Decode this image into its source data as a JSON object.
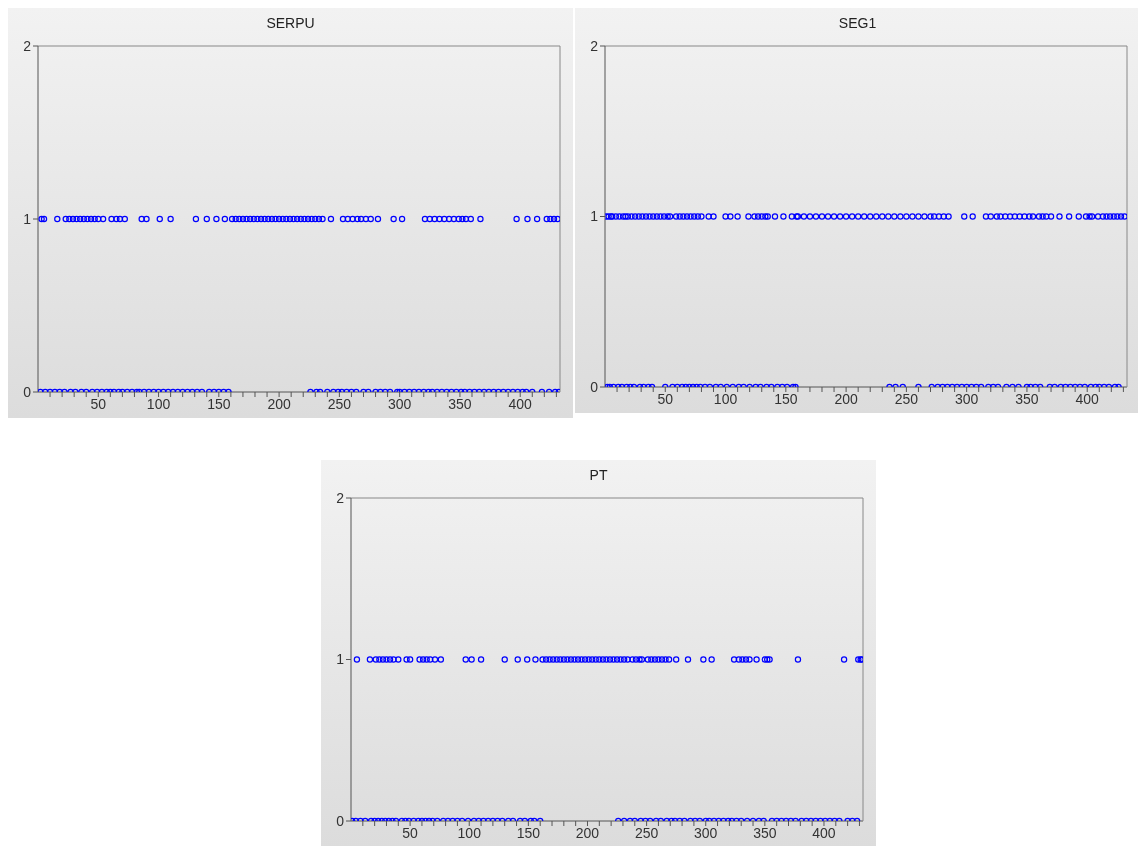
{
  "chart_data": [
    {
      "type": "scatter",
      "title": "SERPU",
      "color": "#0000ff",
      "marker": "circle",
      "xlim": [
        0,
        433
      ],
      "ylim": [
        0,
        2
      ],
      "yticks": [
        0,
        1,
        2
      ],
      "xticks": [
        {
          "value": 10,
          "label": null
        },
        {
          "value": 20,
          "label": null
        },
        {
          "value": 30,
          "label": null
        },
        {
          "value": 40,
          "label": null
        },
        50,
        {
          "value": 60,
          "label": null
        },
        {
          "value": 70,
          "label": null
        },
        {
          "value": 80,
          "label": null
        },
        {
          "value": 90,
          "label": null
        },
        100,
        {
          "value": 110,
          "label": null
        },
        {
          "value": 120,
          "label": null
        },
        {
          "value": 130,
          "label": null
        },
        {
          "value": 140,
          "label": null
        },
        150,
        {
          "value": 160,
          "label": null
        },
        {
          "value": 170,
          "label": null
        },
        {
          "value": 180,
          "label": null
        },
        {
          "value": 190,
          "label": null
        },
        200,
        {
          "value": 210,
          "label": null
        },
        {
          "value": 220,
          "label": null
        },
        {
          "value": 230,
          "label": null
        },
        {
          "value": 240,
          "label": null
        },
        250,
        {
          "value": 260,
          "label": null
        },
        {
          "value": 270,
          "label": null
        },
        {
          "value": 280,
          "label": null
        },
        {
          "value": 290,
          "label": null
        },
        300,
        {
          "value": 310,
          "label": null
        },
        {
          "value": 320,
          "label": null
        },
        {
          "value": 330,
          "label": null
        },
        {
          "value": 340,
          "label": null
        },
        350,
        {
          "value": 360,
          "label": null
        },
        {
          "value": 370,
          "label": null
        },
        {
          "value": 380,
          "label": null
        },
        {
          "value": 390,
          "label": null
        },
        400,
        {
          "value": 410,
          "label": null
        },
        {
          "value": 420,
          "label": null
        },
        {
          "value": 430,
          "label": null
        }
      ],
      "x": [
        3,
        5,
        16,
        23,
        26,
        29,
        32,
        35,
        38,
        41,
        44,
        47,
        50,
        54,
        61,
        65,
        68,
        72,
        86,
        90,
        101,
        110,
        131,
        140,
        148,
        155,
        161,
        164,
        167,
        170,
        173,
        176,
        179,
        182,
        185,
        188,
        191,
        194,
        197,
        200,
        203,
        206,
        209,
        212,
        215,
        218,
        221,
        224,
        227,
        230,
        233,
        236,
        243,
        253,
        257,
        261,
        265,
        268,
        272,
        276,
        282,
        295,
        302,
        321,
        325,
        329,
        333,
        337,
        341,
        345,
        349,
        352,
        355,
        359,
        367,
        397,
        406,
        414,
        422,
        425,
        428,
        431,
        2,
        6,
        10,
        14,
        18,
        22,
        27,
        31,
        36,
        40,
        45,
        49,
        53,
        57,
        60,
        63,
        67,
        70,
        74,
        78,
        82,
        84,
        88,
        92,
        96,
        100,
        104,
        108,
        112,
        116,
        120,
        124,
        128,
        132,
        136,
        142,
        146,
        150,
        154,
        158,
        226,
        231,
        234,
        240,
        245,
        249,
        252,
        256,
        260,
        264,
        270,
        274,
        280,
        284,
        288,
        292,
        298,
        300,
        304,
        308,
        312,
        316,
        320,
        324,
        327,
        331,
        335,
        339,
        343,
        347,
        351,
        354,
        358,
        362,
        366,
        370,
        374,
        378,
        382,
        386,
        390,
        394,
        398,
        402,
        405,
        410,
        418,
        424,
        429,
        432
      ],
      "values": [
        1,
        1,
        1,
        1,
        1,
        1,
        1,
        1,
        1,
        1,
        1,
        1,
        1,
        1,
        1,
        1,
        1,
        1,
        1,
        1,
        1,
        1,
        1,
        1,
        1,
        1,
        1,
        1,
        1,
        1,
        1,
        1,
        1,
        1,
        1,
        1,
        1,
        1,
        1,
        1,
        1,
        1,
        1,
        1,
        1,
        1,
        1,
        1,
        1,
        1,
        1,
        1,
        1,
        1,
        1,
        1,
        1,
        1,
        1,
        1,
        1,
        1,
        1,
        1,
        1,
        1,
        1,
        1,
        1,
        1,
        1,
        1,
        1,
        1,
        1,
        1,
        1,
        1,
        1,
        1,
        1,
        1,
        0,
        0,
        0,
        0,
        0,
        0,
        0,
        0,
        0,
        0,
        0,
        0,
        0,
        0,
        0,
        0,
        0,
        0,
        0,
        0,
        0,
        0,
        0,
        0,
        0,
        0,
        0,
        0,
        0,
        0,
        0,
        0,
        0,
        0,
        0,
        0,
        0,
        0,
        0,
        0,
        0,
        0,
        0,
        0,
        0,
        0,
        0,
        0,
        0,
        0,
        0,
        0,
        0,
        0,
        0,
        0,
        0,
        0,
        0,
        0,
        0,
        0,
        0,
        0,
        0,
        0,
        0,
        0,
        0,
        0,
        0,
        0,
        0,
        0,
        0,
        0,
        0,
        0,
        0,
        0,
        0,
        0,
        0,
        0,
        0,
        0,
        0,
        0,
        0,
        0
      ]
    },
    {
      "type": "scatter",
      "title": "SEG1",
      "color": "#0000ff",
      "marker": "circle",
      "xlim": [
        0,
        433
      ],
      "ylim": [
        0,
        2
      ],
      "yticks": [
        0,
        1,
        2
      ],
      "xticks": [
        {
          "value": 10,
          "label": null
        },
        {
          "value": 20,
          "label": null
        },
        {
          "value": 30,
          "label": null
        },
        {
          "value": 40,
          "label": null
        },
        50,
        {
          "value": 60,
          "label": null
        },
        {
          "value": 70,
          "label": null
        },
        {
          "value": 80,
          "label": null
        },
        {
          "value": 90,
          "label": null
        },
        100,
        {
          "value": 110,
          "label": null
        },
        {
          "value": 120,
          "label": null
        },
        {
          "value": 130,
          "label": null
        },
        {
          "value": 140,
          "label": null
        },
        150,
        {
          "value": 160,
          "label": null
        },
        {
          "value": 170,
          "label": null
        },
        {
          "value": 180,
          "label": null
        },
        {
          "value": 190,
          "label": null
        },
        200,
        {
          "value": 210,
          "label": null
        },
        {
          "value": 220,
          "label": null
        },
        {
          "value": 230,
          "label": null
        },
        {
          "value": 240,
          "label": null
        },
        250,
        {
          "value": 260,
          "label": null
        },
        {
          "value": 270,
          "label": null
        },
        {
          "value": 280,
          "label": null
        },
        {
          "value": 290,
          "label": null
        },
        300,
        {
          "value": 310,
          "label": null
        },
        {
          "value": 320,
          "label": null
        },
        {
          "value": 330,
          "label": null
        },
        {
          "value": 340,
          "label": null
        },
        350,
        {
          "value": 360,
          "label": null
        },
        {
          "value": 370,
          "label": null
        },
        {
          "value": 380,
          "label": null
        },
        {
          "value": 390,
          "label": null
        },
        400,
        {
          "value": 410,
          "label": null
        },
        {
          "value": 420,
          "label": null
        },
        {
          "value": 430,
          "label": null
        }
      ],
      "x": [
        1,
        3,
        5,
        6,
        9,
        12,
        15,
        17,
        19,
        22,
        25,
        28,
        31,
        34,
        37,
        40,
        43,
        46,
        49,
        52,
        54,
        59,
        62,
        65,
        68,
        71,
        74,
        77,
        80,
        86,
        90,
        100,
        104,
        110,
        119,
        124,
        127,
        130,
        133,
        135,
        141,
        148,
        155,
        159,
        160,
        165,
        170,
        175,
        180,
        185,
        190,
        195,
        200,
        205,
        210,
        215,
        220,
        225,
        230,
        235,
        240,
        245,
        250,
        255,
        260,
        265,
        270,
        273,
        277,
        281,
        285,
        298,
        305,
        316,
        320,
        325,
        328,
        332,
        336,
        340,
        344,
        348,
        352,
        355,
        360,
        363,
        366,
        370,
        377,
        385,
        393,
        399,
        402,
        404,
        409,
        413,
        416,
        419,
        422,
        425,
        428,
        431,
        2,
        4,
        7,
        11,
        14,
        18,
        21,
        24,
        29,
        32,
        36,
        39,
        50,
        56,
        60,
        64,
        67,
        70,
        73,
        76,
        79,
        83,
        87,
        92,
        96,
        101,
        106,
        111,
        115,
        120,
        125,
        129,
        134,
        138,
        143,
        147,
        151,
        156,
        158,
        236,
        241,
        247,
        260,
        271,
        276,
        280,
        284,
        288,
        292,
        296,
        300,
        304,
        308,
        312,
        318,
        322,
        326,
        333,
        338,
        343,
        350,
        353,
        357,
        361,
        369,
        373,
        378,
        382,
        386,
        390,
        394,
        398,
        403,
        407,
        410,
        414,
        418,
        423,
        426
      ],
      "values": [
        1,
        1,
        1,
        1,
        1,
        1,
        1,
        1,
        1,
        1,
        1,
        1,
        1,
        1,
        1,
        1,
        1,
        1,
        1,
        1,
        1,
        1,
        1,
        1,
        1,
        1,
        1,
        1,
        1,
        1,
        1,
        1,
        1,
        1,
        1,
        1,
        1,
        1,
        1,
        1,
        1,
        1,
        1,
        1,
        1,
        1,
        1,
        1,
        1,
        1,
        1,
        1,
        1,
        1,
        1,
        1,
        1,
        1,
        1,
        1,
        1,
        1,
        1,
        1,
        1,
        1,
        1,
        1,
        1,
        1,
        1,
        1,
        1,
        1,
        1,
        1,
        1,
        1,
        1,
        1,
        1,
        1,
        1,
        1,
        1,
        1,
        1,
        1,
        1,
        1,
        1,
        1,
        1,
        1,
        1,
        1,
        1,
        1,
        1,
        1,
        1,
        1,
        0,
        0,
        0,
        0,
        0,
        0,
        0,
        0,
        0,
        0,
        0,
        0,
        0,
        0,
        0,
        0,
        0,
        0,
        0,
        0,
        0,
        0,
        0,
        0,
        0,
        0,
        0,
        0,
        0,
        0,
        0,
        0,
        0,
        0,
        0,
        0,
        0,
        0,
        0,
        0,
        0,
        0,
        0,
        0,
        0,
        0,
        0,
        0,
        0,
        0,
        0,
        0,
        0,
        0,
        0,
        0,
        0,
        0,
        0,
        0,
        0,
        0,
        0,
        0,
        0,
        0,
        0,
        0,
        0,
        0,
        0,
        0,
        0,
        0,
        0,
        0,
        0,
        0,
        0
      ]
    },
    {
      "type": "scatter",
      "title": "PT",
      "color": "#0000ff",
      "marker": "circle",
      "xlim": [
        0,
        433
      ],
      "ylim": [
        0,
        2
      ],
      "yticks": [
        0,
        1,
        2
      ],
      "xticks": [
        {
          "value": 10,
          "label": null
        },
        {
          "value": 20,
          "label": null
        },
        {
          "value": 30,
          "label": null
        },
        {
          "value": 40,
          "label": null
        },
        50,
        {
          "value": 60,
          "label": null
        },
        {
          "value": 70,
          "label": null
        },
        {
          "value": 80,
          "label": null
        },
        {
          "value": 90,
          "label": null
        },
        100,
        {
          "value": 110,
          "label": null
        },
        {
          "value": 120,
          "label": null
        },
        {
          "value": 130,
          "label": null
        },
        {
          "value": 140,
          "label": null
        },
        150,
        {
          "value": 160,
          "label": null
        },
        {
          "value": 170,
          "label": null
        },
        {
          "value": 180,
          "label": null
        },
        {
          "value": 190,
          "label": null
        },
        200,
        {
          "value": 210,
          "label": null
        },
        {
          "value": 220,
          "label": null
        },
        {
          "value": 230,
          "label": null
        },
        {
          "value": 240,
          "label": null
        },
        250,
        {
          "value": 260,
          "label": null
        },
        {
          "value": 270,
          "label": null
        },
        {
          "value": 280,
          "label": null
        },
        {
          "value": 290,
          "label": null
        },
        300,
        {
          "value": 310,
          "label": null
        },
        {
          "value": 320,
          "label": null
        },
        {
          "value": 330,
          "label": null
        },
        {
          "value": 340,
          "label": null
        },
        350,
        {
          "value": 360,
          "label": null
        },
        {
          "value": 370,
          "label": null
        },
        {
          "value": 380,
          "label": null
        },
        {
          "value": 390,
          "label": null
        },
        400,
        {
          "value": 410,
          "label": null
        },
        {
          "value": 420,
          "label": null
        },
        {
          "value": 430,
          "label": null
        }
      ],
      "x": [
        5,
        16,
        21,
        24,
        27,
        30,
        33,
        36,
        40,
        47,
        50,
        58,
        61,
        64,
        67,
        71,
        76,
        97,
        102,
        110,
        130,
        141,
        149,
        156,
        162,
        165,
        168,
        171,
        174,
        177,
        180,
        183,
        186,
        189,
        192,
        195,
        198,
        201,
        204,
        207,
        210,
        213,
        216,
        219,
        222,
        225,
        228,
        231,
        234,
        238,
        241,
        244,
        246,
        251,
        254,
        257,
        260,
        263,
        266,
        269,
        275,
        285,
        298,
        305,
        324,
        328,
        331,
        334,
        337,
        343,
        350,
        352,
        354,
        378,
        417,
        429,
        431,
        432,
        1,
        4,
        8,
        12,
        17,
        20,
        23,
        26,
        29,
        32,
        35,
        38,
        43,
        46,
        49,
        53,
        57,
        60,
        63,
        66,
        69,
        73,
        78,
        82,
        86,
        90,
        94,
        99,
        104,
        108,
        112,
        116,
        120,
        124,
        128,
        133,
        137,
        143,
        147,
        152,
        155,
        160,
        226,
        231,
        236,
        240,
        245,
        249,
        253,
        258,
        262,
        267,
        271,
        274,
        278,
        282,
        287,
        291,
        295,
        300,
        303,
        307,
        311,
        315,
        319,
        322,
        326,
        330,
        335,
        340,
        345,
        349,
        356,
        360,
        364,
        368,
        372,
        376,
        381,
        385,
        389,
        393,
        397,
        401,
        405,
        409,
        413,
        420,
        424,
        428
      ],
      "values": [
        1,
        1,
        1,
        1,
        1,
        1,
        1,
        1,
        1,
        1,
        1,
        1,
        1,
        1,
        1,
        1,
        1,
        1,
        1,
        1,
        1,
        1,
        1,
        1,
        1,
        1,
        1,
        1,
        1,
        1,
        1,
        1,
        1,
        1,
        1,
        1,
        1,
        1,
        1,
        1,
        1,
        1,
        1,
        1,
        1,
        1,
        1,
        1,
        1,
        1,
        1,
        1,
        1,
        1,
        1,
        1,
        1,
        1,
        1,
        1,
        1,
        1,
        1,
        1,
        1,
        1,
        1,
        1,
        1,
        1,
        1,
        1,
        1,
        1,
        1,
        1,
        1,
        1,
        0,
        0,
        0,
        0,
        0,
        0,
        0,
        0,
        0,
        0,
        0,
        0,
        0,
        0,
        0,
        0,
        0,
        0,
        0,
        0,
        0,
        0,
        0,
        0,
        0,
        0,
        0,
        0,
        0,
        0,
        0,
        0,
        0,
        0,
        0,
        0,
        0,
        0,
        0,
        0,
        0,
        0,
        0,
        0,
        0,
        0,
        0,
        0,
        0,
        0,
        0,
        0,
        0,
        0,
        0,
        0,
        0,
        0,
        0,
        0,
        0,
        0,
        0,
        0,
        0,
        0,
        0,
        0,
        0,
        0,
        0,
        0,
        0,
        0,
        0,
        0,
        0,
        0,
        0,
        0,
        0,
        0,
        0,
        0,
        0,
        0,
        0,
        0,
        0,
        0
      ]
    }
  ]
}
